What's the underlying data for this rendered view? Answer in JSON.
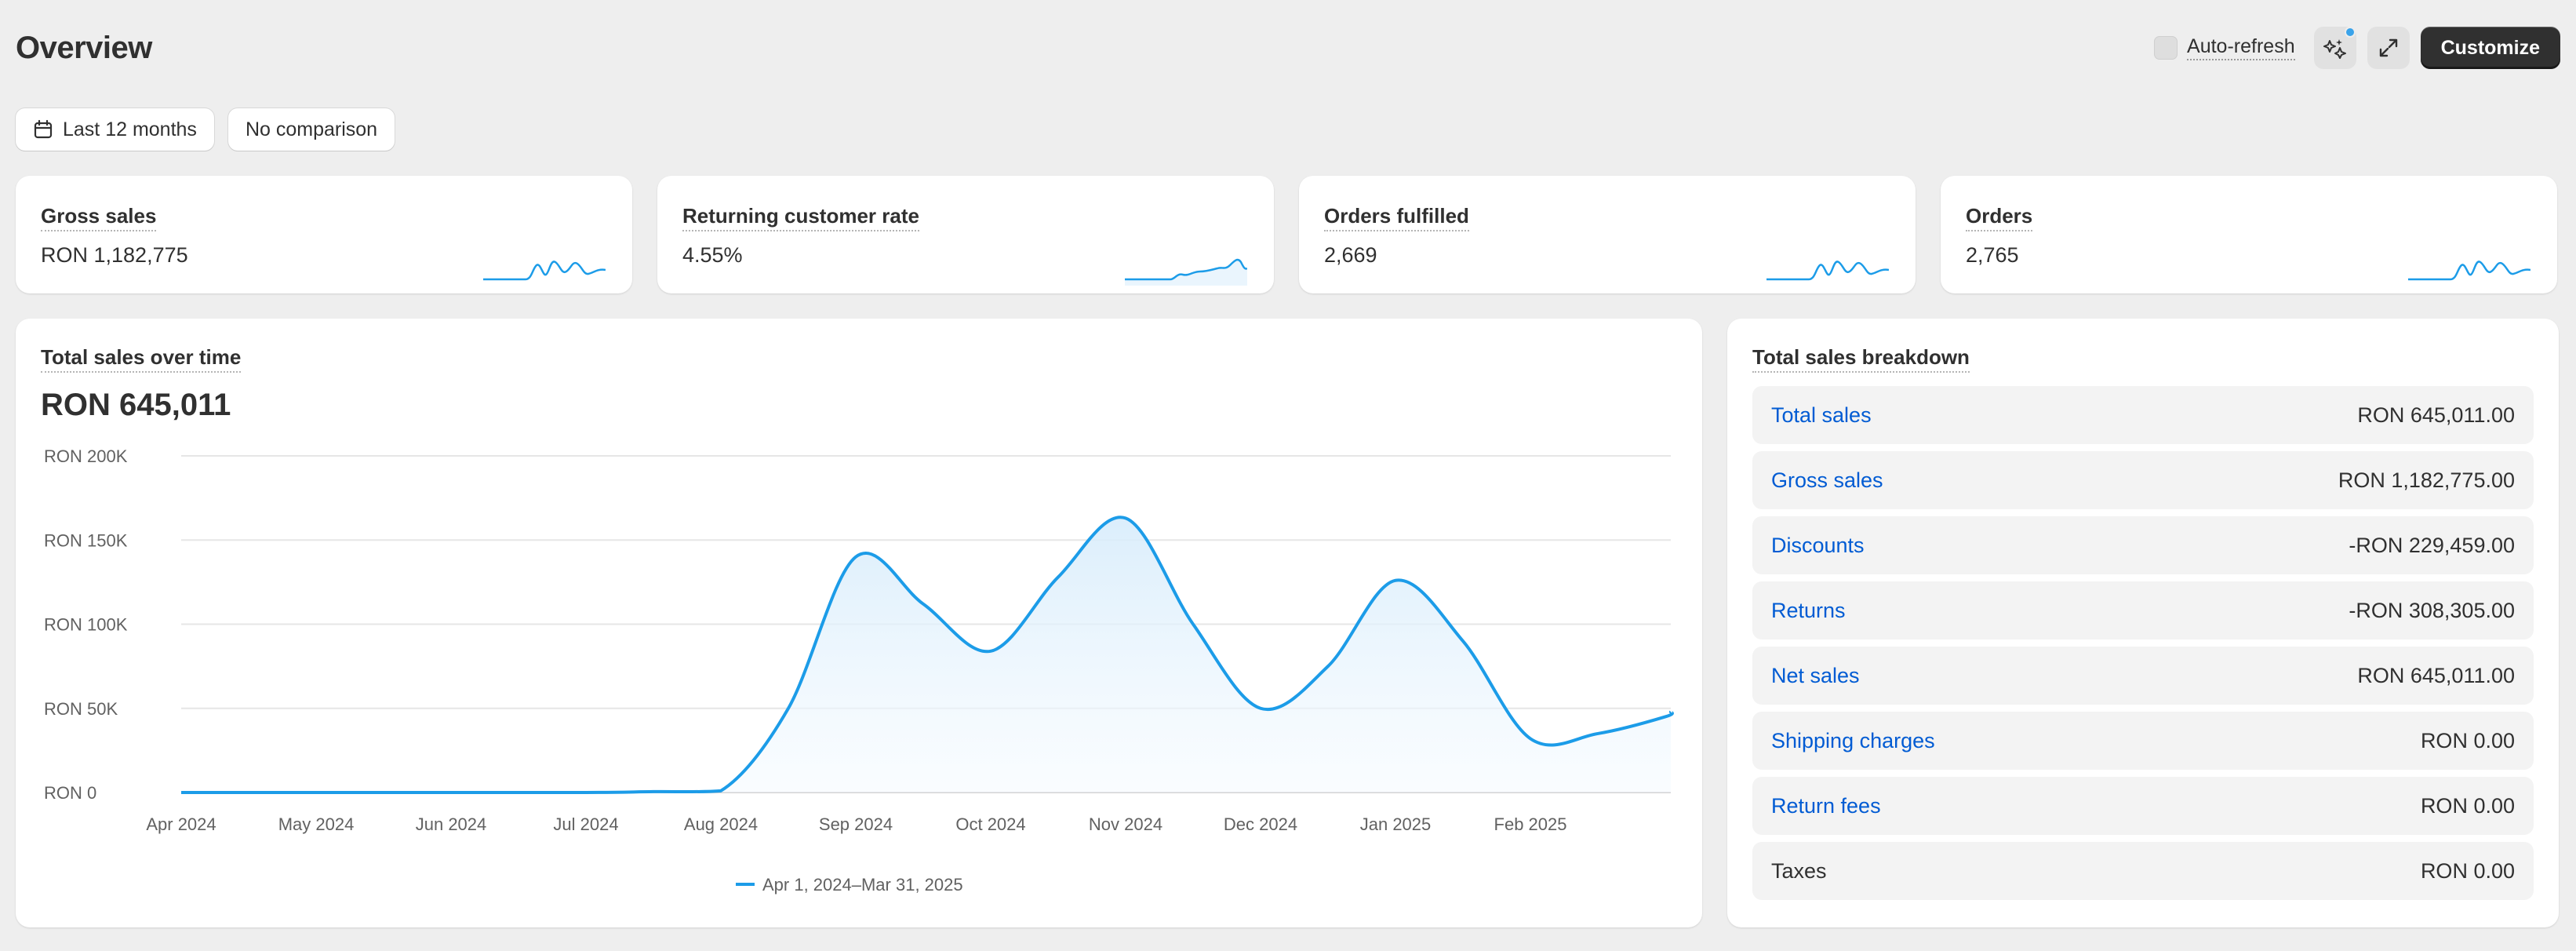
{
  "header": {
    "title": "Overview",
    "auto_refresh_label": "Auto-refresh",
    "customize_label": "Customize"
  },
  "filters": {
    "date_range": "Last 12 months",
    "comparison": "No comparison"
  },
  "kpis": [
    {
      "label": "Gross sales",
      "value": "RON 1,182,775"
    },
    {
      "label": "Returning customer rate",
      "value": "4.55%"
    },
    {
      "label": "Orders fulfilled",
      "value": "2,669"
    },
    {
      "label": "Orders",
      "value": "2,765"
    }
  ],
  "sales_over_time": {
    "title": "Total sales over time",
    "value": "RON 645,011"
  },
  "chart_data": {
    "type": "area",
    "title": "Total sales over time",
    "xlabel": "",
    "ylabel": "",
    "ylim": [
      0,
      200000
    ],
    "yticks": [
      0,
      50000,
      100000,
      150000,
      200000
    ],
    "ytick_labels": [
      "RON 0",
      "RON 50K",
      "RON 100K",
      "RON 150K",
      "RON 200K"
    ],
    "xtick_labels": [
      "Apr 2024",
      "May 2024",
      "Jun 2024",
      "Jul 2024",
      "Aug 2024",
      "Sep 2024",
      "Oct 2024",
      "Nov 2024",
      "Dec 2024",
      "Jan 2025",
      "Feb 2025"
    ],
    "grid": true,
    "legend_position": "bottom",
    "color": "#1c9ce8",
    "series": [
      {
        "name": "Apr 1, 2024–Mar 31, 2025",
        "x": [
          "Apr 2024",
          "May 2024",
          "Jun 2024",
          "Jul 2024",
          "Jul 2024",
          "Aug 2024",
          "Aug 2024",
          "Sep 2024",
          "Sep 2024",
          "Oct 2024",
          "Oct 2024",
          "Nov 2024",
          "Nov 2024",
          "Dec 2024",
          "Dec 2024",
          "Jan 2025",
          "Jan 2025",
          "Feb 2025",
          "Feb 2025",
          "Mar 2025",
          "Mar 2025"
        ],
        "x_pos": [
          0,
          1,
          2,
          3,
          3.5,
          4,
          4.5,
          5,
          5.5,
          6,
          6.5,
          7,
          7.5,
          8,
          8.5,
          9,
          9.5,
          10,
          10.5,
          11,
          11.3
        ],
        "values": [
          0,
          0,
          0,
          0,
          500,
          1000,
          50000,
          140000,
          112000,
          84000,
          128000,
          163000,
          100000,
          50000,
          75000,
          126000,
          90000,
          32000,
          35000,
          45000,
          48000
        ]
      }
    ]
  },
  "breakdown": {
    "title": "Total sales breakdown",
    "rows": [
      {
        "label": "Total sales",
        "value": "RON 645,011.00",
        "link": true
      },
      {
        "label": "Gross sales",
        "value": "RON 1,182,775.00",
        "link": true
      },
      {
        "label": "Discounts",
        "value": "-RON 229,459.00",
        "link": true
      },
      {
        "label": "Returns",
        "value": "-RON 308,305.00",
        "link": true
      },
      {
        "label": "Net sales",
        "value": "RON 645,011.00",
        "link": true
      },
      {
        "label": "Shipping charges",
        "value": "RON 0.00",
        "link": true
      },
      {
        "label": "Return fees",
        "value": "RON 0.00",
        "link": true
      },
      {
        "label": "Taxes",
        "value": "RON 0.00",
        "link": false
      }
    ]
  }
}
